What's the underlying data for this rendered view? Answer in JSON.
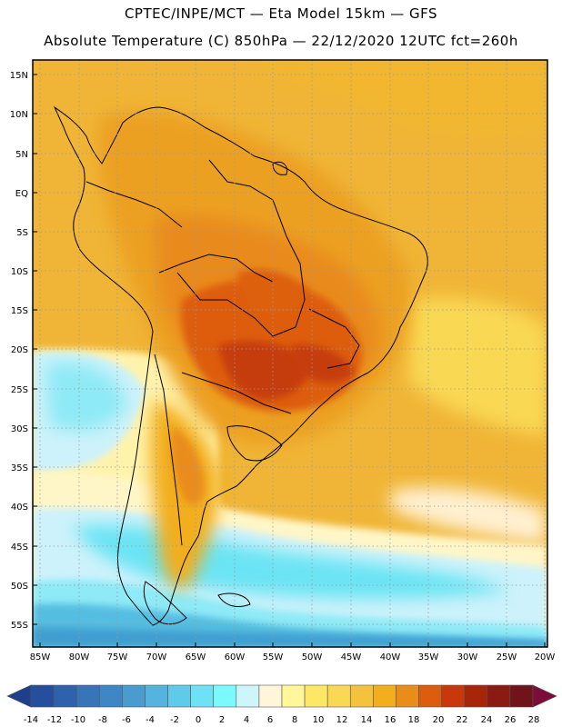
{
  "header": {
    "line1": "CPTEC/INPE/MCT  —   Eta Model 15km  —  GFS",
    "line2": "Absolute Temperature (C) 850hPa  —  22/12/2020 12UTC fct=260h"
  },
  "map": {
    "lat_labels": [
      "15N",
      "10N",
      "5N",
      "EQ",
      "5S",
      "10S",
      "15S",
      "20S",
      "25S",
      "30S",
      "35S",
      "40S",
      "45S",
      "50S",
      "55S"
    ],
    "lon_labels": [
      "85W",
      "80W",
      "75W",
      "70W",
      "65W",
      "60W",
      "55W",
      "50W",
      "45W",
      "40W",
      "35W",
      "30W",
      "25W",
      "20W"
    ]
  },
  "colorbar": {
    "labels": [
      "-14",
      "-12",
      "-10",
      "-8",
      "-6",
      "-4",
      "-2",
      "0",
      "2",
      "4",
      "6",
      "8",
      "10",
      "12",
      "14",
      "16",
      "18",
      "20",
      "22",
      "24",
      "26",
      "28"
    ],
    "colors": [
      "#1e3f8c",
      "#254f9c",
      "#2e62ac",
      "#3874b8",
      "#3f86c4",
      "#4a9ccf",
      "#55b4dd",
      "#5fcbe8",
      "#6ee2f4",
      "#7af9ff",
      "#cdf5fc",
      "#fff6d9",
      "#fff799",
      "#fde866",
      "#f9d853",
      "#f3c33d",
      "#f2ae1c",
      "#ea8c1a",
      "#de5c0e",
      "#c9380c",
      "#a8250a",
      "#8b1a12",
      "#6e141a",
      "#7b0d3a"
    ]
  }
}
